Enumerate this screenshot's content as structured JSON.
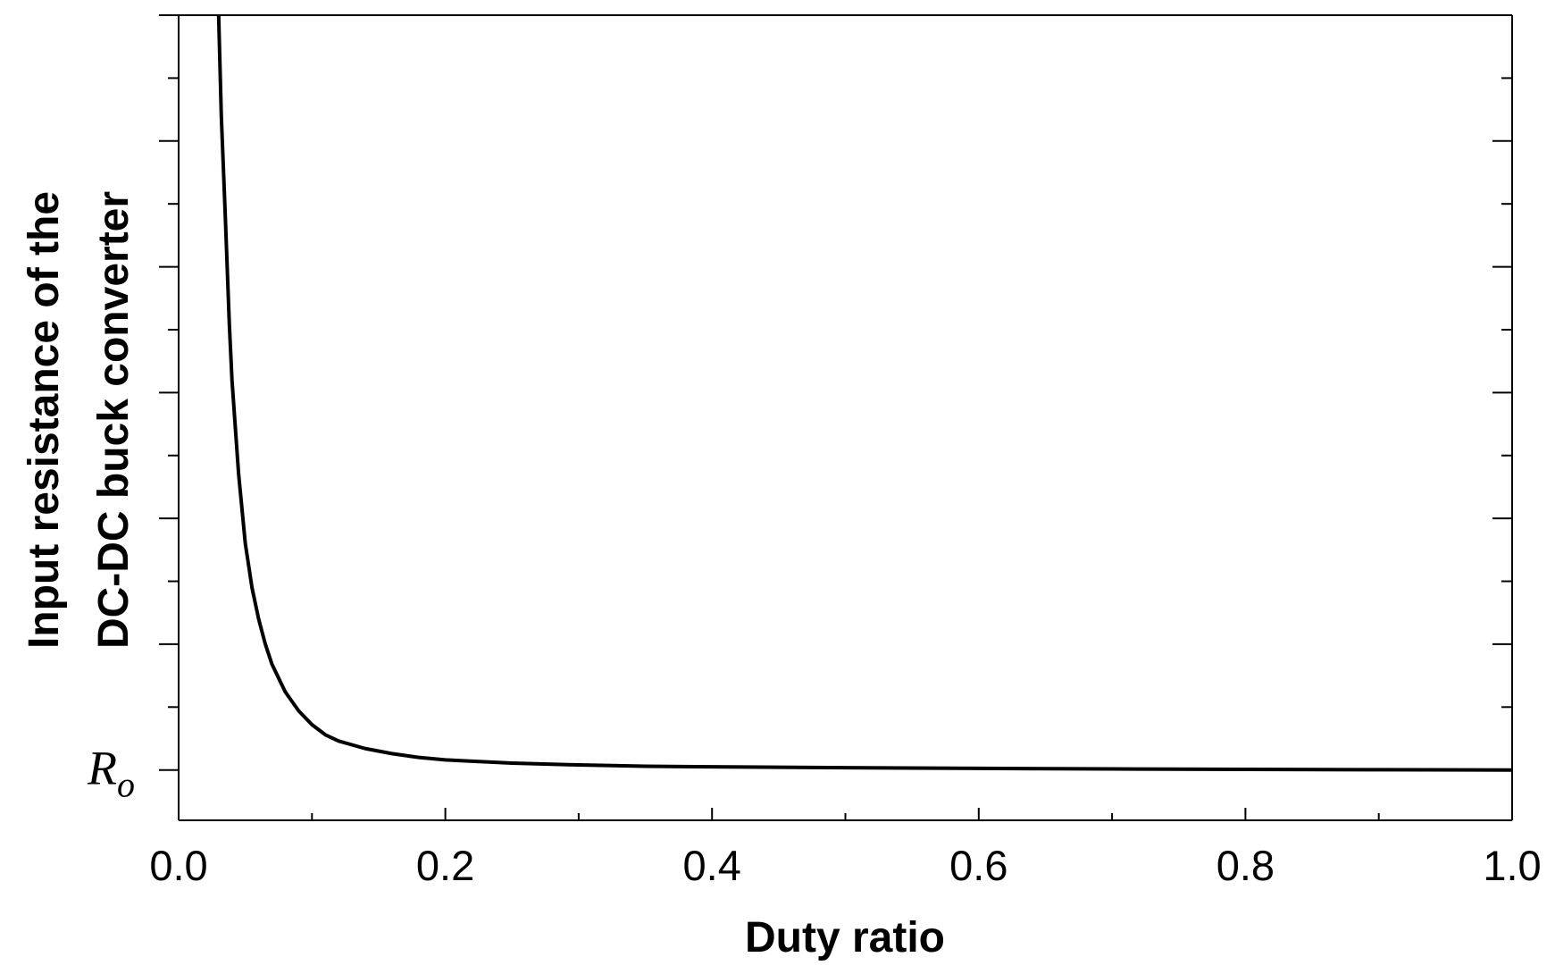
{
  "chart_data": {
    "type": "line",
    "title": "",
    "xlabel": "Duty ratio",
    "ylabel_lines": [
      "Input resistance of the",
      "DC-DC buck converter"
    ],
    "y_special_label": {
      "base": "R",
      "sub": "o",
      "value": 1
    },
    "xlim": [
      0,
      1
    ],
    "ylim": [
      0.6,
      7
    ],
    "x_ticks": [
      0.0,
      0.2,
      0.4,
      0.6,
      0.8,
      1.0
    ],
    "x_tick_labels": [
      "0.0",
      "0.2",
      "0.4",
      "0.6",
      "0.8",
      "1.0"
    ],
    "grid": false,
    "legend": "none",
    "series": [
      {
        "x": [
          0.03,
          0.032,
          0.035,
          0.038,
          0.04,
          0.045,
          0.05,
          0.055,
          0.06,
          0.065,
          0.07,
          0.08,
          0.09,
          0.1,
          0.11,
          0.12,
          0.14,
          0.16,
          0.18,
          0.2,
          0.25,
          0.3,
          0.35,
          0.4,
          0.5,
          0.6,
          0.7,
          0.8,
          0.9,
          1.0
        ],
        "y": [
          7.0,
          6.2,
          5.4,
          4.55,
          4.1,
          3.35,
          2.8,
          2.45,
          2.2,
          2.0,
          1.84,
          1.62,
          1.47,
          1.36,
          1.28,
          1.23,
          1.17,
          1.13,
          1.1,
          1.08,
          1.055,
          1.04,
          1.03,
          1.025,
          1.018,
          1.013,
          1.008,
          1.005,
          1.002,
          1.0
        ],
        "color": "#000000"
      }
    ]
  }
}
